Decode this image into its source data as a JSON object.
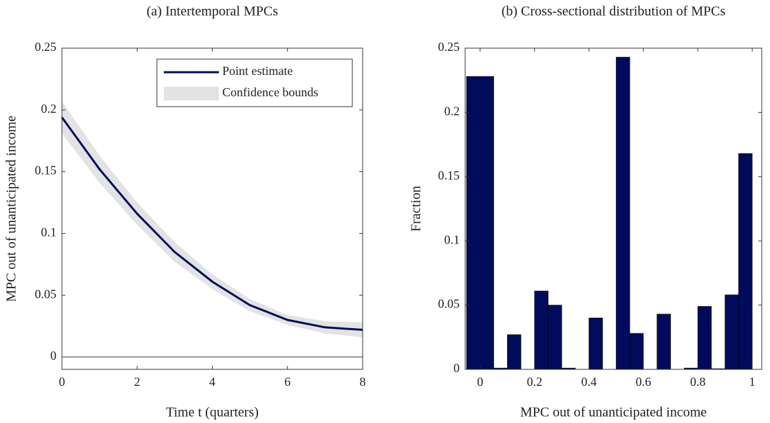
{
  "chart_data": [
    {
      "type": "line",
      "title": "(a) Intertemporal MPCs",
      "x_label": "Time t (quarters)",
      "y_label": "MPC out of unanticipated income",
      "x": [
        0,
        1,
        2,
        3,
        4,
        5,
        6,
        7,
        8
      ],
      "series": [
        {
          "name": "Point estimate",
          "color": "#000c5b",
          "values": [
            0.194,
            0.152,
            0.116,
            0.085,
            0.061,
            0.042,
            0.03,
            0.024,
            0.022
          ]
        }
      ],
      "band": {
        "name": "Confidence bounds",
        "color": "#e3e3e3",
        "upper": [
          0.207,
          0.163,
          0.125,
          0.093,
          0.067,
          0.047,
          0.034,
          0.029,
          0.028
        ],
        "lower": [
          0.181,
          0.141,
          0.107,
          0.077,
          0.055,
          0.037,
          0.026,
          0.019,
          0.016
        ]
      },
      "xlim": [
        0,
        8
      ],
      "xticks": [
        0,
        2,
        4,
        6,
        8
      ],
      "ylim": [
        -0.01,
        0.25
      ],
      "yticks": [
        0,
        0.05,
        0.1,
        0.15,
        0.2,
        0.25
      ],
      "zero_line": true,
      "legend": "upper-right"
    },
    {
      "type": "histogram",
      "title": "(b) Cross-sectional distribution of MPCs",
      "x_label": "MPC out of unanticipated income",
      "y_label": "Fraction",
      "color": "#000c5b",
      "bins": [
        -0.05,
        0.05,
        0.1,
        0.15,
        0.2,
        0.25,
        0.3,
        0.35,
        0.4,
        0.45,
        0.5,
        0.55,
        0.6,
        0.65,
        0.7,
        0.75,
        0.8,
        0.85,
        0.9,
        0.95,
        1.0
      ],
      "values": [
        0.228,
        0.001,
        0.027,
        0,
        0.061,
        0.05,
        0.001,
        0,
        0.04,
        0,
        0.243,
        0.028,
        0,
        0.043,
        0,
        0.001,
        0.049,
        0.0005,
        0.058,
        0.168
      ],
      "xlim": [
        -0.055,
        1.035
      ],
      "xticks": [
        0,
        0.2,
        0.4,
        0.6,
        0.8,
        1
      ],
      "ylim": [
        0,
        0.25
      ],
      "yticks": [
        0,
        0.05,
        0.1,
        0.15,
        0.2,
        0.25
      ]
    }
  ]
}
